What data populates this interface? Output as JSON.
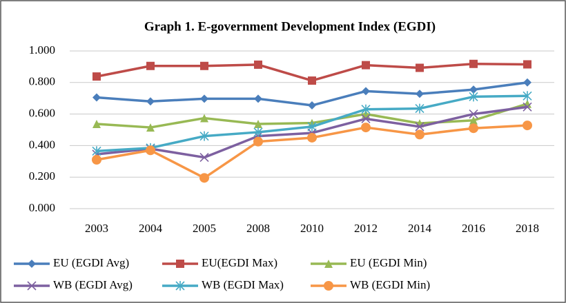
{
  "chart_data": {
    "type": "line",
    "title": "Graph 1. E-government Development Index (EGDI)",
    "categories": [
      "2003",
      "2004",
      "2005",
      "2008",
      "2010",
      "2012",
      "2014",
      "2016",
      "2018"
    ],
    "series": [
      {
        "name": "EU (EGDI Avg)",
        "color": "#4a7ebb",
        "marker": "diamond",
        "values": [
          0.705,
          0.68,
          0.697,
          0.697,
          0.655,
          0.745,
          0.728,
          0.755,
          0.8
        ]
      },
      {
        "name": "EU(EGDI Max)",
        "color": "#be4b48",
        "marker": "square",
        "values": [
          0.838,
          0.905,
          0.905,
          0.913,
          0.812,
          0.91,
          0.893,
          0.918,
          0.915
        ]
      },
      {
        "name": "EU (EGDI Min)",
        "color": "#98b954",
        "marker": "triangle",
        "values": [
          0.537,
          0.515,
          0.574,
          0.537,
          0.543,
          0.6,
          0.541,
          0.56,
          0.665
        ]
      },
      {
        "name": "WB (EGDI Avg)",
        "color": "#7d60a0",
        "marker": "x",
        "values": [
          0.345,
          0.38,
          0.325,
          0.46,
          0.48,
          0.57,
          0.52,
          0.6,
          0.645
        ]
      },
      {
        "name": "WB (EGDI Max)",
        "color": "#46aac5",
        "marker": "star",
        "values": [
          0.365,
          0.385,
          0.46,
          0.485,
          0.52,
          0.63,
          0.635,
          0.71,
          0.715
        ]
      },
      {
        "name": "WB (EGDI Min)",
        "color": "#f79646",
        "marker": "circle",
        "values": [
          0.31,
          0.37,
          0.195,
          0.425,
          0.45,
          0.515,
          0.47,
          0.51,
          0.528
        ]
      }
    ],
    "ylim": [
      0,
      1
    ],
    "yticks": [
      {
        "value": 0,
        "label": "0.000"
      },
      {
        "value": 0.2,
        "label": "0.200"
      },
      {
        "value": 0.4,
        "label": "0.400"
      },
      {
        "value": 0.6,
        "label": "0.600"
      },
      {
        "value": 0.8,
        "label": "0.800"
      },
      {
        "value": 1,
        "label": "1.000"
      }
    ],
    "grid": true,
    "legend": "bottom"
  }
}
